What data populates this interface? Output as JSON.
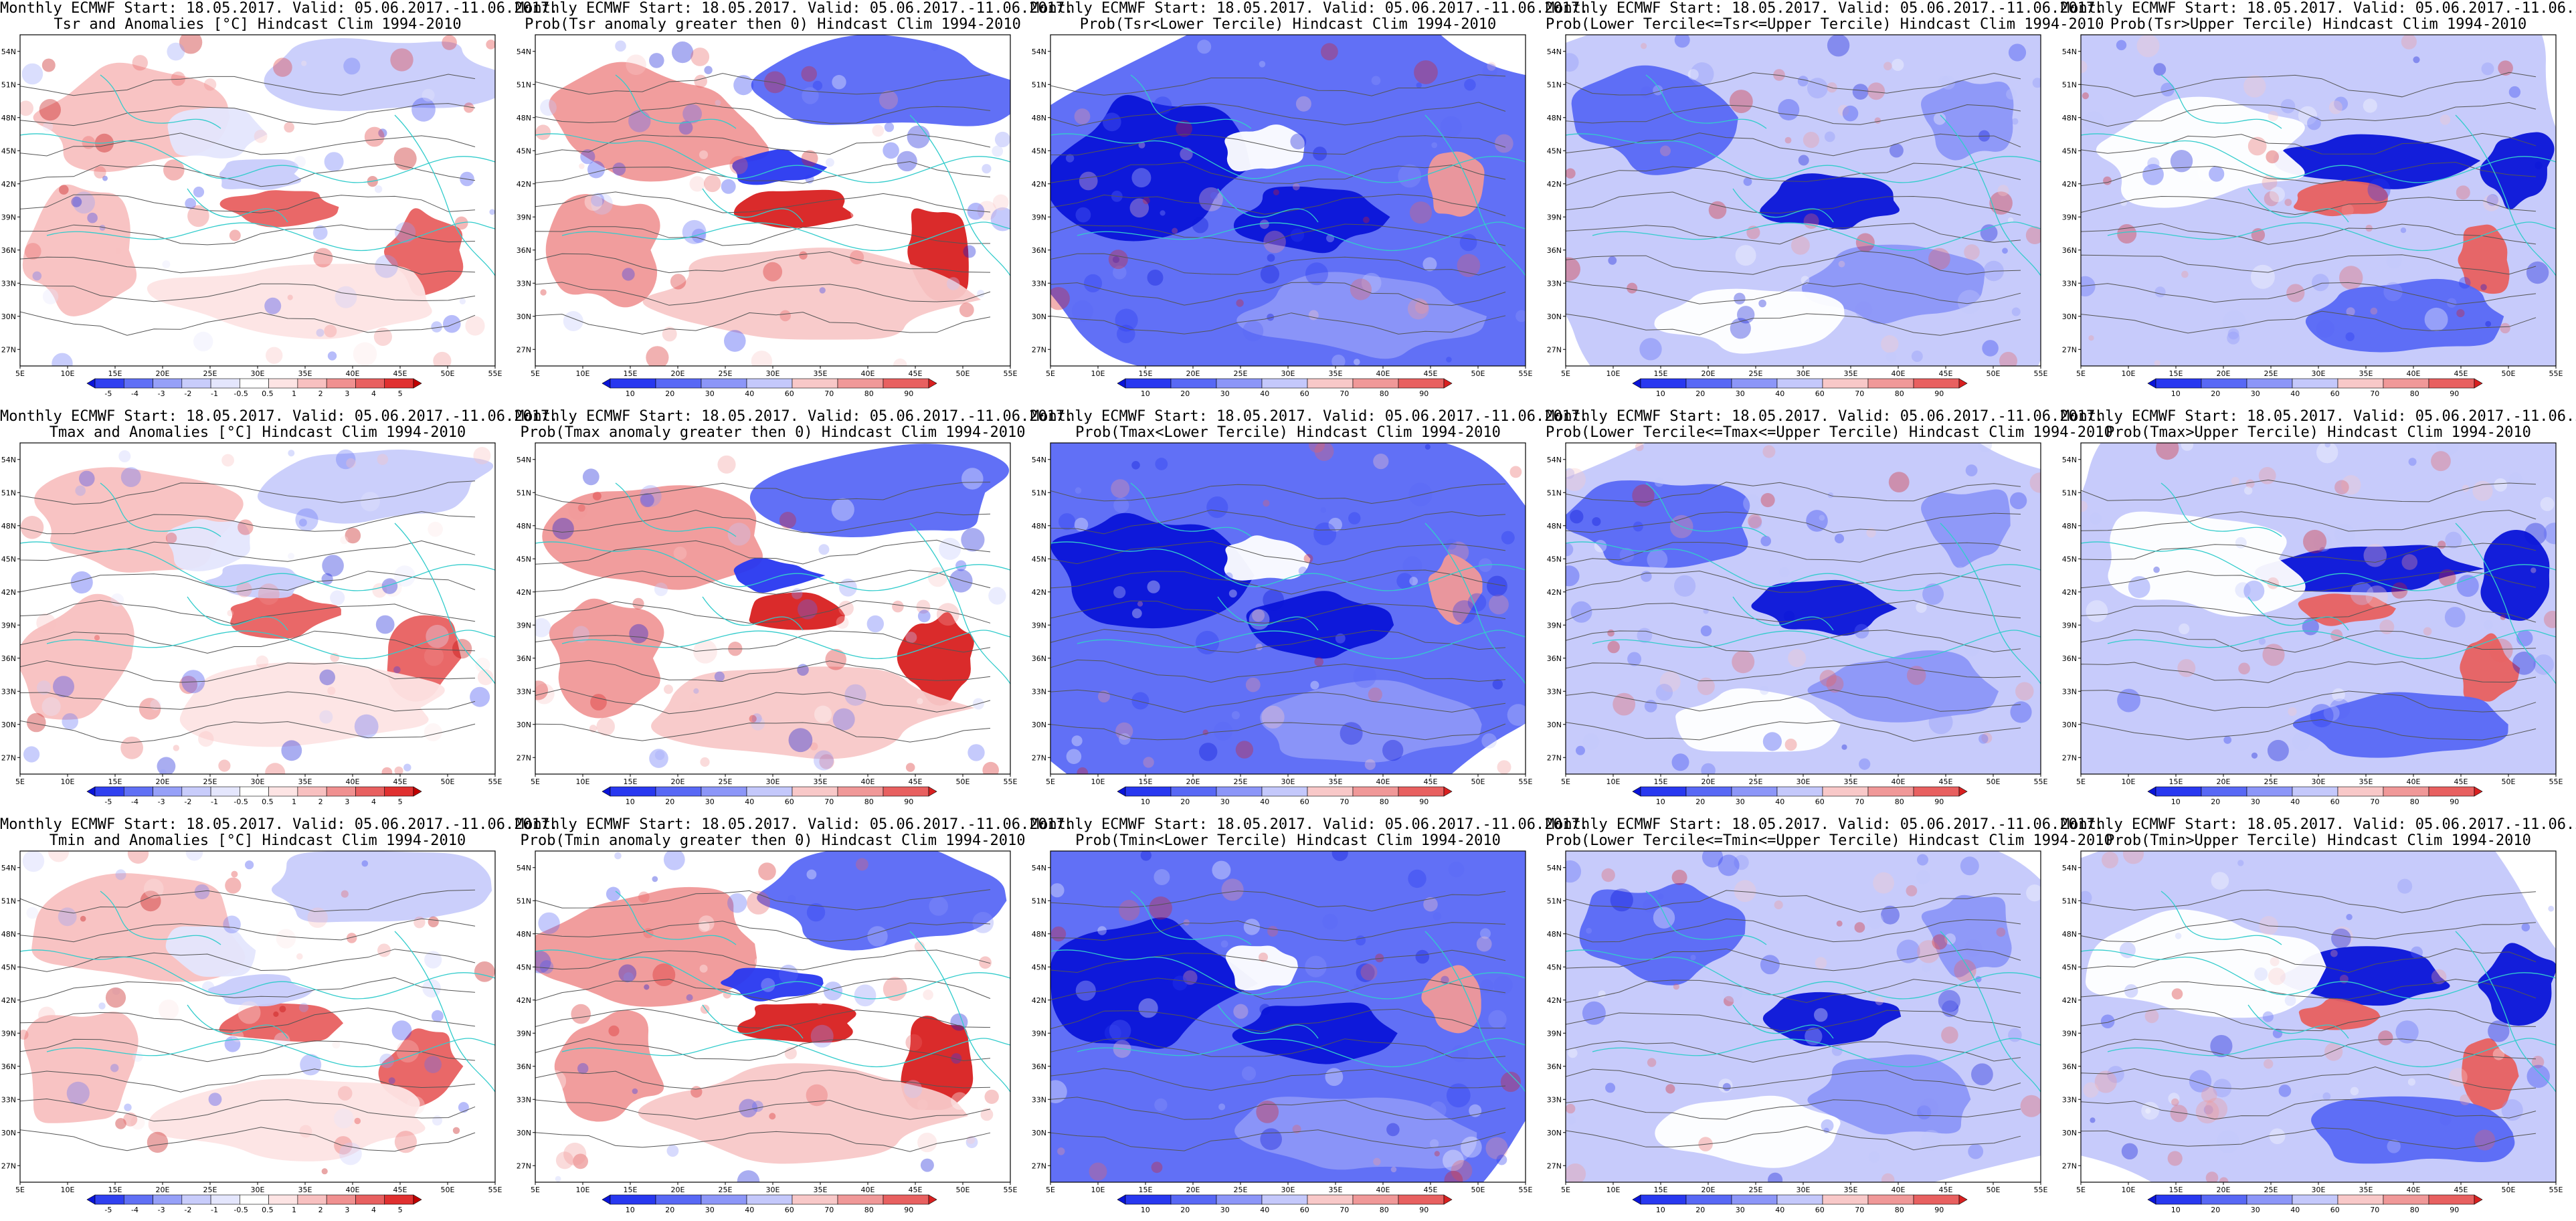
{
  "chart_data": {
    "type": "heatmap",
    "header": "Monthly ECMWF Start: 18.05.2017. Valid: 05.06.2017.-11.06.2017.",
    "x_ticks": [
      "5E",
      "10E",
      "15E",
      "20E",
      "25E",
      "30E",
      "35E",
      "40E",
      "45E",
      "50E",
      "55E"
    ],
    "y_ticks": [
      "27N",
      "30N",
      "33N",
      "36N",
      "39N",
      "42N",
      "45N",
      "48N",
      "51N",
      "54N"
    ],
    "xlim": [
      5,
      55
    ],
    "ylim": [
      25.5,
      55.5
    ],
    "colors": {
      "anom_neg": [
        "#0a14d8",
        "#3040f0",
        "#6070f5",
        "#96a0f8",
        "#c8ccfb",
        "#e4e6fd"
      ],
      "anom_pos": [
        "#fde4e4",
        "#f8c0c0",
        "#f09090",
        "#e86060",
        "#e03030",
        "#c00000"
      ],
      "prob": [
        "#0a14d8",
        "#2838f0",
        "#5868f5",
        "#8c96f8",
        "#c4c8fb",
        "#ffffff",
        "#f8c8c8",
        "#f09898",
        "#e86060",
        "#d82020"
      ],
      "coast": "#33cccc",
      "contour": "#555555"
    },
    "anom_levels": [
      "-5",
      "-4",
      "-3",
      "-2",
      "-1",
      "-0.5",
      "0.5",
      "1",
      "2",
      "3",
      "4",
      "5"
    ],
    "prob_levels": [
      "10",
      "20",
      "30",
      "40",
      "60",
      "70",
      "80",
      "90"
    ],
    "rows": [
      {
        "var": "Tsr",
        "panels": [
          {
            "title": "Tsr and Anomalies [°C] Hindcast Clim 1994-2010",
            "kind": "anom"
          },
          {
            "title": "Prob(Tsr anomaly greater then 0) Hindcast Clim 1994-2010",
            "kind": "pgt0"
          },
          {
            "title": "Prob(Tsr<Lower Tercile) Hindcast Clim 1994-2010",
            "kind": "plow"
          },
          {
            "title": "Prob(Lower Tercile<=Tsr<=Upper Tercile) Hindcast Clim 1994-2010",
            "kind": "pmid"
          },
          {
            "title": "Prob(Tsr>Upper Tercile) Hindcast Clim 1994-2010",
            "kind": "pup"
          }
        ]
      },
      {
        "var": "Tmax",
        "panels": [
          {
            "title": "Tmax and Anomalies [°C] Hindcast Clim 1994-2010",
            "kind": "anom"
          },
          {
            "title": "Prob(Tmax anomaly greater then 0) Hindcast Clim 1994-2010",
            "kind": "pgt0"
          },
          {
            "title": "Prob(Tmax<Lower Tercile) Hindcast Clim 1994-2010",
            "kind": "plow"
          },
          {
            "title": "Prob(Lower Tercile<=Tmax<=Upper Tercile) Hindcast Clim 1994-2010",
            "kind": "pmid"
          },
          {
            "title": "Prob(Tmax>Upper Tercile) Hindcast Clim 1994-2010",
            "kind": "pup"
          }
        ]
      },
      {
        "var": "Tmin",
        "panels": [
          {
            "title": "Tmin and Anomalies [°C] Hindcast Clim 1994-2010",
            "kind": "anom"
          },
          {
            "title": "Prob(Tmin anomaly greater then 0) Hindcast Clim 1994-2010",
            "kind": "pgt0"
          },
          {
            "title": "Prob(Tmin<Lower Tercile) Hindcast Clim 1994-2010",
            "kind": "plow"
          },
          {
            "title": "Prob(Lower Tercile<=Tmin<=Upper Tercile) Hindcast Clim 1994-2010",
            "kind": "pmid"
          },
          {
            "title": "Prob(Tmin>Upper Tercile) Hindcast Clim 1994-2010",
            "kind": "pup"
          }
        ]
      }
    ]
  }
}
